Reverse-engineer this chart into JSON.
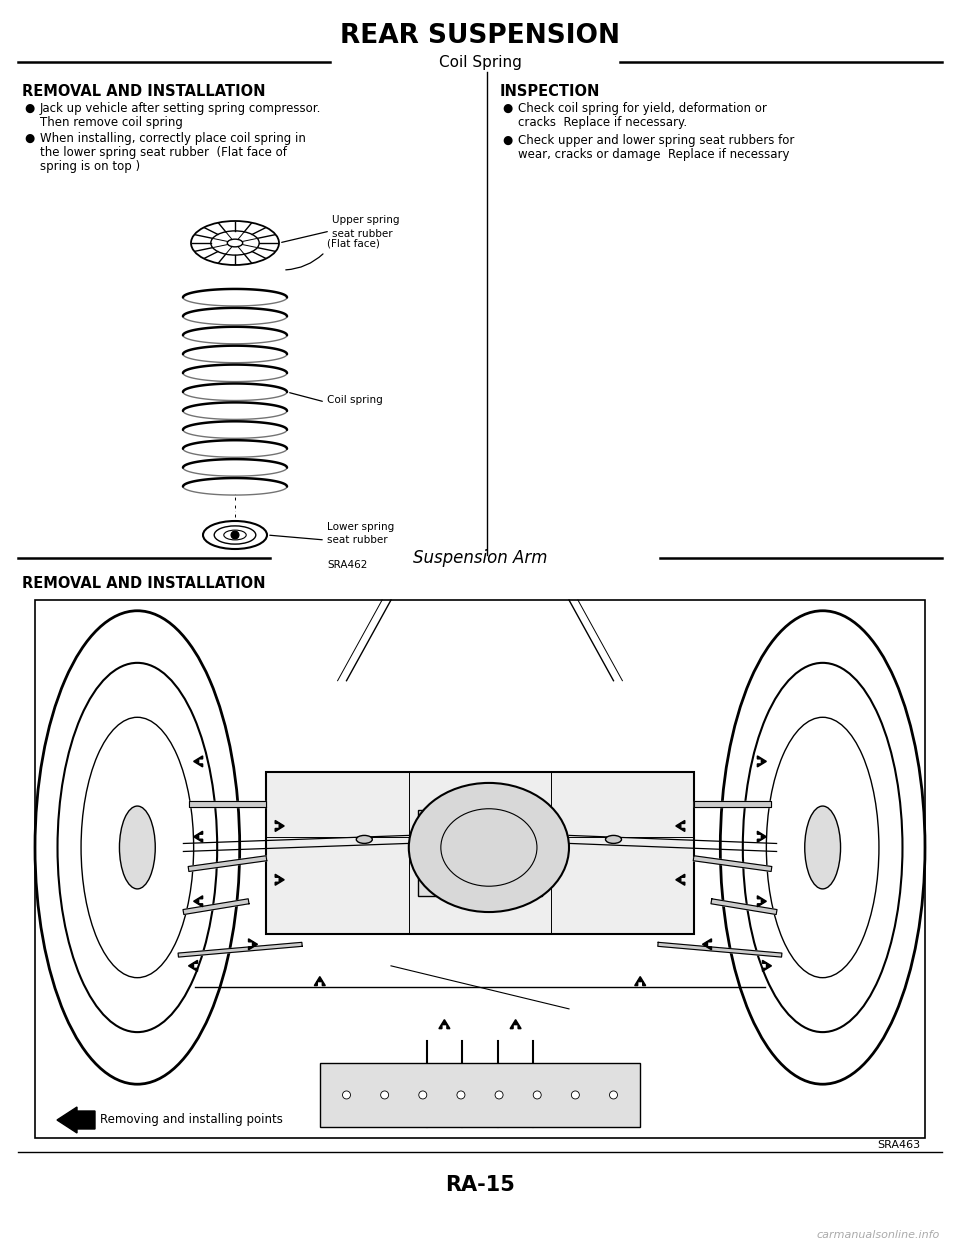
{
  "title": "REAR SUSPENSION",
  "section1_title": "Coil Spring",
  "left_heading": "REMOVAL AND INSTALLATION",
  "right_heading": "INSPECTION",
  "left_bullet1_line1": "Jack up vehicle after setting spring compressor.",
  "left_bullet1_line2": "Then remove coil spring",
  "left_bullet2_line1": "When installing, correctly place coil spring in",
  "left_bullet2_line2": "the lower spring seat rubber  (Flat face of",
  "left_bullet2_line3": "spring is on top )",
  "right_bullet1_line1": "Check coil spring for yield, deformation or",
  "right_bullet1_line2": "cracks  Replace if necessary.",
  "right_bullet2_line1": "Check upper and lower spring seat rubbers for",
  "right_bullet2_line2": "wear, cracks or damage  Replace if necessary",
  "label_upper_spring_line1": "Upper spring",
  "label_upper_spring_line2": "seat rubber",
  "label_flat_face": "(Flat face)",
  "label_coil_spring": "Coil spring",
  "label_lower_spring_line1": "Lower spring",
  "label_lower_spring_line2": "seat rubber",
  "label_sra462": "SRA462",
  "section2_title": "Suspension Arm",
  "second_heading": "REMOVAL AND INSTALLATION",
  "diagram2_label": "Removing and installing points",
  "sra463": "SRA463",
  "page_number": "RA-15",
  "watermark": "carmanualsonline.info",
  "bg_color": "#ffffff",
  "text_color": "#000000"
}
